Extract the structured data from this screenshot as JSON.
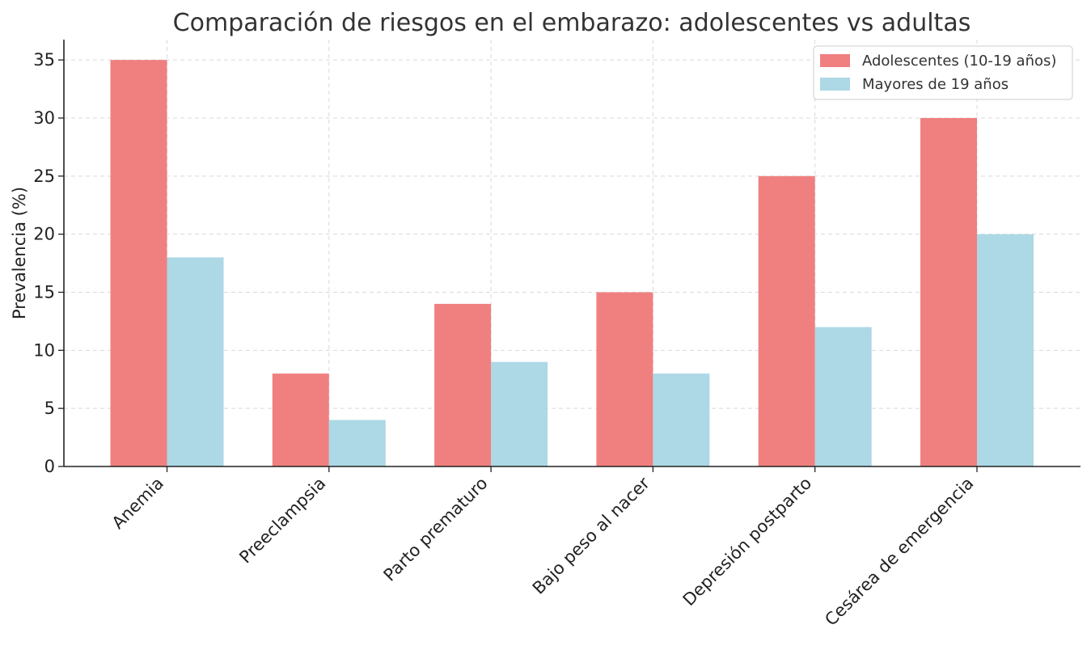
{
  "chart_data": {
    "type": "bar",
    "title": "Comparación de riesgos en el embarazo: adolescentes vs adultas",
    "xlabel": "",
    "ylabel": "Prevalencia (%)",
    "categories": [
      "Anemia",
      "Preeclampsia",
      "Parto prematuro",
      "Bajo peso al nacer",
      "Depresión postparto",
      "Cesárea de emergencia"
    ],
    "series": [
      {
        "name": "Adolescentes (10-19 años)",
        "color": "#f08080",
        "values": [
          35,
          8,
          14,
          15,
          25,
          30
        ]
      },
      {
        "name": "Mayores de 19 años",
        "color": "#add8e6",
        "values": [
          18,
          4,
          9,
          8,
          12,
          20
        ]
      }
    ],
    "ylim": [
      0,
      36.75
    ],
    "yticks": [
      0,
      5,
      10,
      15,
      20,
      25,
      30,
      35
    ],
    "grid": true,
    "legend": "top-right"
  }
}
